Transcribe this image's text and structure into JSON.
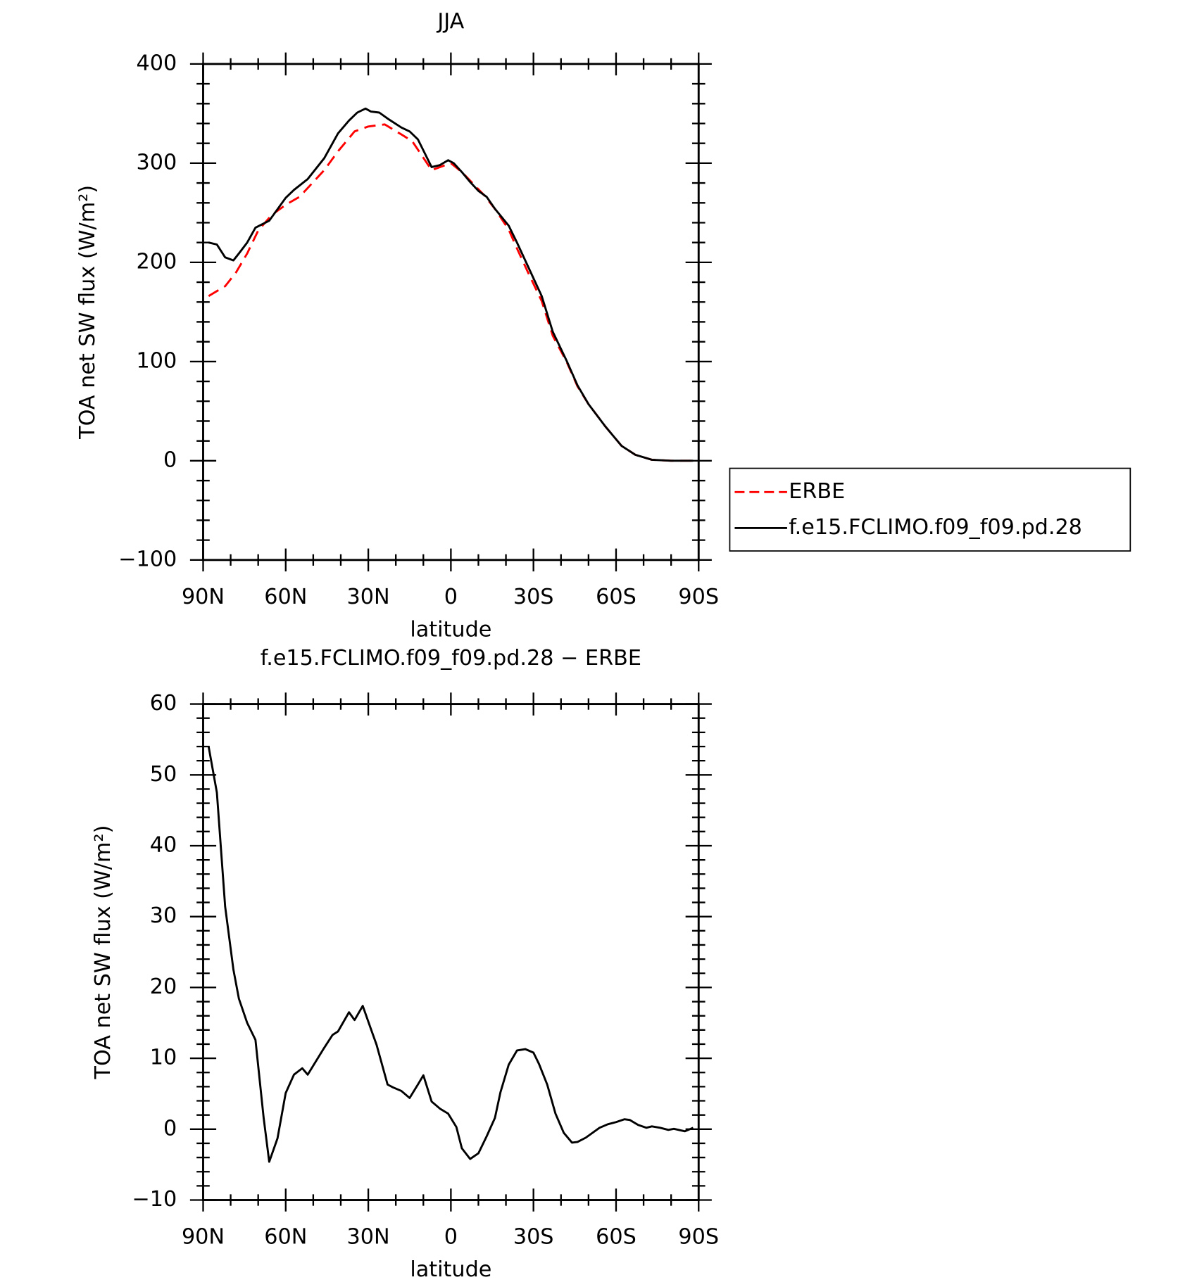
{
  "chart_data": [
    {
      "type": "line",
      "title": "JJA",
      "xlabel": "latitude",
      "ylabel": "TOA net SW flux (W/m²)",
      "xlim": [
        90,
        -90
      ],
      "xticks": [
        {
          "value": 90,
          "label": "90N"
        },
        {
          "value": 60,
          "label": "60N"
        },
        {
          "value": 30,
          "label": "30N"
        },
        0,
        {
          "value": -30,
          "label": "30S"
        },
        {
          "value": -60,
          "label": "60S"
        },
        {
          "value": -90,
          "label": "90S"
        }
      ],
      "xminorticks": [
        80,
        70,
        50,
        40,
        20,
        10,
        -10,
        -20,
        -40,
        -50,
        -70,
        -80
      ],
      "ylim": [
        -100,
        400
      ],
      "yticks": [
        {
          "value": -100,
          "label": "−100"
        },
        0,
        100,
        200,
        300,
        400
      ],
      "yminorticks": [
        -80,
        -60,
        -40,
        -20,
        20,
        40,
        60,
        80,
        120,
        140,
        160,
        180,
        220,
        240,
        260,
        280,
        320,
        340,
        360,
        380
      ],
      "legend": "right",
      "series": [
        {
          "name": "ERBE",
          "color": "#ff0000",
          "dash": true,
          "x": [
            88,
            82,
            78,
            74,
            70,
            65,
            60,
            55,
            51,
            46,
            41,
            35,
            30,
            24,
            18,
            14,
            7,
            3,
            0,
            -4,
            -12,
            -16,
            -21,
            -24,
            -28,
            -33,
            -37,
            -42,
            -46,
            -50,
            -56,
            -62,
            -67,
            -73,
            -80,
            -88
          ],
          "values": [
            166,
            176,
            190,
            209,
            232,
            248,
            258,
            266,
            278,
            293,
            312,
            332,
            337,
            339,
            329,
            322,
            293,
            297,
            300,
            291,
            268,
            254,
            233,
            214,
            190,
            161,
            126,
            100,
            75,
            57,
            35,
            15,
            6,
            1,
            0,
            0
          ]
        },
        {
          "name": "f.e15.FCLIMO.f09_f09.pd.28",
          "color": "#000000",
          "dash": false,
          "x": [
            88,
            85,
            82,
            79,
            77,
            74,
            71,
            66,
            60,
            57,
            52,
            46,
            41,
            37,
            34,
            31,
            29,
            26,
            23,
            18,
            15,
            12,
            7,
            4,
            1,
            -1,
            -4,
            -7,
            -10,
            -13,
            -16,
            -21,
            -24,
            -28,
            -33,
            -37,
            -42,
            -46,
            -50,
            -56,
            -62,
            -67,
            -73,
            -80,
            -88
          ],
          "values": [
            220,
            218,
            205,
            202,
            209,
            220,
            235,
            242,
            265,
            273,
            284,
            305,
            330,
            343,
            351,
            355,
            352,
            351,
            345,
            336,
            332,
            324,
            296,
            298,
            303,
            300,
            291,
            281,
            272,
            266,
            254,
            237,
            220,
            196,
            166,
            130,
            101,
            76,
            57,
            35,
            15,
            6,
            1,
            0,
            0
          ]
        }
      ]
    },
    {
      "type": "line",
      "title": "f.e15.FCLIMO.f09_f09.pd.28 − ERBE",
      "xlabel": "latitude",
      "ylabel": "TOA net SW flux (W/m²)",
      "xlim": [
        90,
        -90
      ],
      "xticks": [
        {
          "value": 90,
          "label": "90N"
        },
        {
          "value": 60,
          "label": "60N"
        },
        {
          "value": 30,
          "label": "30N"
        },
        0,
        {
          "value": -30,
          "label": "30S"
        },
        {
          "value": -60,
          "label": "60S"
        },
        {
          "value": -90,
          "label": "90S"
        }
      ],
      "xminorticks": [
        80,
        70,
        50,
        40,
        20,
        10,
        -10,
        -20,
        -40,
        -50,
        -70,
        -80
      ],
      "ylim": [
        -10,
        60
      ],
      "yticks": [
        {
          "value": -10,
          "label": "−10"
        },
        0,
        10,
        20,
        30,
        40,
        50,
        60
      ],
      "yminorticks": [
        -8,
        -6,
        -4,
        -2,
        2,
        4,
        6,
        8,
        12,
        14,
        16,
        18,
        22,
        24,
        26,
        28,
        32,
        34,
        36,
        38,
        42,
        44,
        46,
        48,
        52,
        54,
        56,
        58
      ],
      "series": [
        {
          "color": "#000000",
          "dash": false,
          "x": [
            88,
            85,
            82,
            79,
            77,
            74,
            71,
            68,
            66,
            63,
            60,
            57,
            54,
            52,
            46,
            43,
            41,
            37,
            35,
            32,
            29,
            27,
            23,
            21,
            18,
            15,
            12,
            10,
            7,
            4,
            1,
            -2,
            -4,
            -7,
            -10,
            -13,
            -16,
            -18,
            -21,
            -24,
            -27,
            -30,
            -32,
            -35,
            -38,
            -41,
            -44,
            -46,
            -49,
            -54,
            -57,
            -60,
            -63,
            -65,
            -68,
            -71,
            -73,
            -76,
            -79,
            -81,
            -85,
            -88
          ],
          "values": [
            54,
            47.5,
            31.4,
            22.5,
            18.4,
            15,
            12.6,
            1.6,
            -4.6,
            -1.3,
            5.1,
            7.7,
            8.6,
            7.7,
            11.5,
            13.3,
            13.8,
            16.5,
            15.4,
            17.4,
            14.1,
            11.9,
            6.3,
            5.9,
            5.4,
            4.4,
            6.3,
            7.6,
            3.9,
            2.9,
            2.2,
            0.3,
            -2.7,
            -4.2,
            -3.4,
            -1,
            1.6,
            5.2,
            9.1,
            11.1,
            11.3,
            10.8,
            9.2,
            6.3,
            2.2,
            -0.5,
            -1.9,
            -1.8,
            -1.2,
            0.2,
            0.7,
            1,
            1.4,
            1.3,
            0.6,
            0.2,
            0.4,
            0.2,
            -0.1,
            0.05,
            -0.3,
            0.2
          ]
        }
      ]
    }
  ]
}
